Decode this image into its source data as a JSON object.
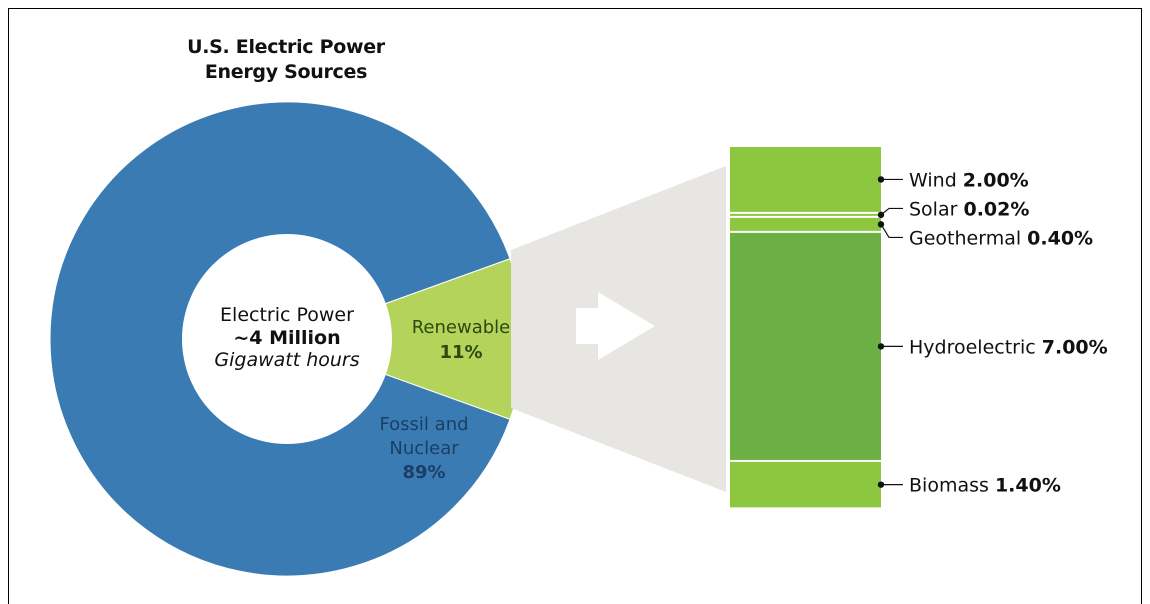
{
  "chart_data": {
    "type": "pie",
    "title": "U.S. Electric Power",
    "subtitle": "Energy Sources",
    "center": {
      "line1": "Electric Power",
      "line2": "~4 Million",
      "line3": "Gigawatt hours"
    },
    "slices": [
      {
        "label": "Renewable",
        "value": 11,
        "value_label": "11%",
        "color": "#b3d35a"
      },
      {
        "label_line1": "Fossil and",
        "label_line2": "Nuclear",
        "value": 89,
        "value_label": "89%",
        "color": "#3b7bb4"
      }
    ],
    "breakdown": {
      "type": "stacked-bar",
      "segments": [
        {
          "name": "Wind",
          "value": 2.0,
          "value_label": "2.00%",
          "color": "#8dc63f"
        },
        {
          "name": "Solar",
          "value": 0.02,
          "value_label": "0.02%",
          "color": "#8dc63f"
        },
        {
          "name": "Geothermal",
          "value": 0.4,
          "value_label": "0.40%",
          "color": "#8dc63f"
        },
        {
          "name": "Hydroelectric",
          "value": 7.0,
          "value_label": "7.00%",
          "color": "#6cb043"
        },
        {
          "name": "Biomass",
          "value": 1.4,
          "value_label": "1.40%",
          "color": "#8dc63f"
        }
      ]
    },
    "colors": {
      "fossil": "#3b7bb4",
      "renewable": "#b3d35a",
      "callout": "#e8e6e3",
      "fossil_text": "#1a3f66",
      "renewable_text": "#2b4a10"
    }
  }
}
